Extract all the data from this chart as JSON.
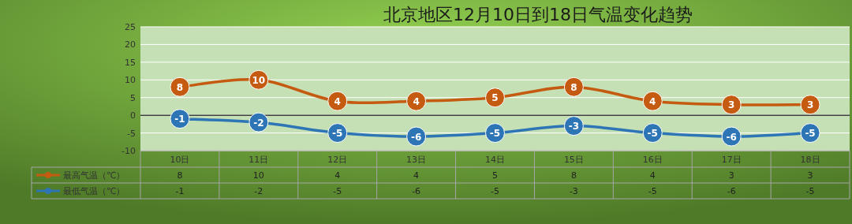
{
  "chart_data": {
    "type": "line",
    "title": "北京地区12月10日到18日气温变化趋势",
    "categories": [
      "10日",
      "11日",
      "12日",
      "13日",
      "14日",
      "15日",
      "16日",
      "17日",
      "18日"
    ],
    "series": [
      {
        "name": "最高气温（℃）",
        "color": "#c55a11",
        "values": [
          8,
          10,
          4,
          4,
          5,
          8,
          4,
          3,
          3
        ]
      },
      {
        "name": "最低气温（℃）",
        "color": "#2e75b6",
        "values": [
          -1,
          -2,
          -5,
          -6,
          -5,
          -3,
          -5,
          -6,
          -5
        ]
      }
    ],
    "ylim": [
      -10,
      25
    ],
    "yticks": [
      -10,
      -5,
      0,
      5,
      10,
      15,
      20,
      25
    ],
    "grid": "y",
    "marker": "circle",
    "data_labels": true,
    "legend": "bottom",
    "annotations": [
      {
        "text": "8",
        "x": "10日",
        "y": 8
      },
      {
        "text": "10",
        "x": "11日",
        "y": 10
      },
      {
        "text": "4",
        "x": "12日",
        "y": 4
      },
      {
        "text": "4",
        "x": "13日",
        "y": 4
      },
      {
        "text": "5",
        "x": "14日",
        "y": 5
      },
      {
        "text": "8",
        "x": "15日",
        "y": 8
      },
      {
        "text": "4",
        "x": "16日",
        "y": 4
      },
      {
        "text": "3",
        "x": "17日",
        "y": 3
      },
      {
        "text": "3",
        "x": "18日",
        "y": 3
      },
      {
        "text": "-1",
        "x": "10日",
        "y": -1
      },
      {
        "text": "-2",
        "x": "11日",
        "y": -2
      },
      {
        "text": "-5",
        "x": "12日",
        "y": -5
      },
      {
        "text": "-6",
        "x": "13日",
        "y": -6
      },
      {
        "text": "-5",
        "x": "14日",
        "y": -5
      },
      {
        "text": "-3",
        "x": "15日",
        "y": -3
      },
      {
        "text": "-5",
        "x": "16日",
        "y": -5
      },
      {
        "text": "-6",
        "x": "17日",
        "y": -6
      },
      {
        "text": "-5",
        "x": "18日",
        "y": -5
      }
    ]
  }
}
